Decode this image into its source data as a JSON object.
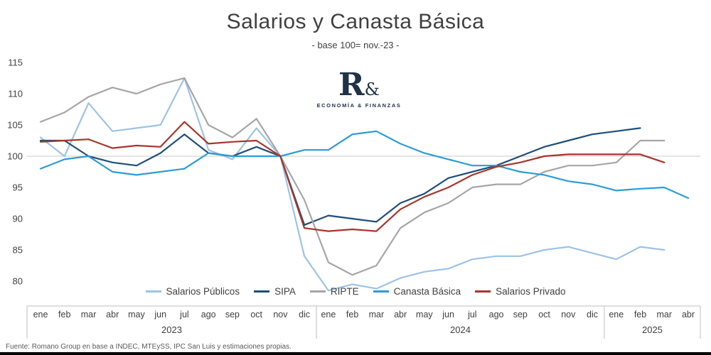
{
  "logo": {
    "mark": "R",
    "amp": "&",
    "tagline": "ECONOMÍA & FINANZAS"
  },
  "footer": {
    "source": "Fuente: Romano Group en base a INDEC, MTEySS, IPC San Luis y estimaciones propias."
  },
  "chart_data": {
    "type": "line",
    "title": "Salarios y Canasta Básica",
    "subtitle": "- base 100= nov.-23 -",
    "x_labels": [
      "ene",
      "feb",
      "mar",
      "abr",
      "may",
      "jun",
      "jul",
      "ago",
      "sep",
      "oct",
      "nov",
      "dic",
      "ene",
      "feb",
      "mar",
      "abr",
      "may",
      "jun",
      "jul",
      "ago",
      "sep",
      "oct",
      "nov",
      "dic",
      "ene",
      "feb",
      "mar",
      "abr"
    ],
    "year_groups": [
      {
        "label": "2023",
        "start": 0,
        "count": 12
      },
      {
        "label": "2024",
        "start": 12,
        "count": 12
      },
      {
        "label": "2025",
        "start": 24,
        "count": 4
      }
    ],
    "y_ticks": [
      80,
      85,
      90,
      95,
      100,
      105,
      110,
      115
    ],
    "ylim": [
      76,
      115
    ],
    "baseline": 100,
    "grid": "baseline-only",
    "legend_position": "bottom-center",
    "series": [
      {
        "name": "Salarios Públicos",
        "color": "#9DC3E6",
        "values": [
          103,
          100,
          108.5,
          104,
          104.5,
          105,
          112.5,
          101,
          99.5,
          104.5,
          100,
          84,
          78.5,
          79.5,
          78.8,
          80.5,
          81.5,
          82,
          83.5,
          84,
          84,
          85,
          85.5,
          84.5,
          83.5,
          85.5,
          85,
          null
        ]
      },
      {
        "name": "SIPA",
        "color": "#1F4E79",
        "values": [
          102.5,
          102.5,
          100,
          99,
          98.5,
          100.5,
          103.5,
          100.5,
          100,
          101.5,
          100,
          89,
          90.5,
          90,
          89.5,
          92.5,
          94,
          96.5,
          97.5,
          98.5,
          100,
          101.5,
          102.5,
          103.5,
          104,
          104.5,
          null,
          null
        ]
      },
      {
        "name": "RIPTE",
        "color": "#A6A6A6",
        "values": [
          105.5,
          107,
          109.5,
          111,
          110,
          111.5,
          112.5,
          105,
          103,
          106,
          100,
          93,
          83,
          81,
          82.5,
          88.5,
          91,
          92.5,
          95,
          95.5,
          95.5,
          97.5,
          98.5,
          98.5,
          99,
          102.5,
          102.5,
          null
        ]
      },
      {
        "name": "Canasta Básica",
        "color": "#2C9CD4",
        "values": [
          98,
          99.5,
          100,
          97.5,
          97,
          97.5,
          98,
          100.5,
          100,
          100,
          100,
          101,
          101,
          103.5,
          104,
          102,
          100.5,
          99.5,
          98.5,
          98.5,
          97.5,
          97,
          96,
          95.5,
          94.5,
          94.8,
          95,
          93.3
        ]
      },
      {
        "name": "Salarios Privado",
        "color": "#A6352B",
        "values": [
          102.3,
          102.5,
          102.7,
          101.3,
          101.7,
          101.5,
          105.5,
          102,
          102.3,
          102.5,
          100,
          88.5,
          88,
          88.3,
          88,
          91.5,
          93.5,
          95,
          97,
          98.3,
          99,
          100,
          100.3,
          100.3,
          100.3,
          100.3,
          99,
          null
        ]
      }
    ]
  }
}
